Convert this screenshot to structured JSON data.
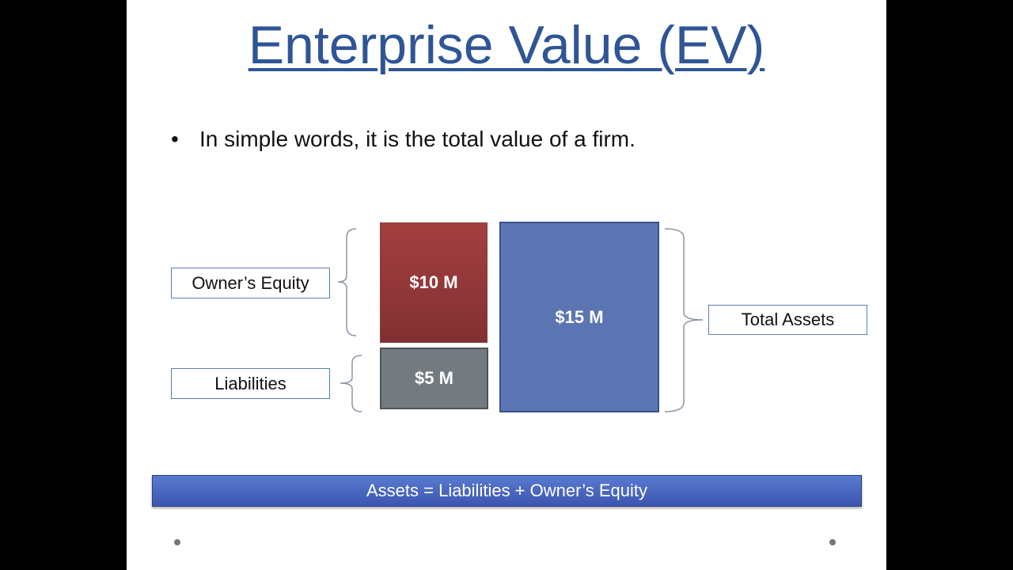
{
  "slide": {
    "title": "Enterprise Value (EV)",
    "bullet": "In simple words, it is the total value of a firm.",
    "diagram": {
      "owners_equity_label": "Owner’s Equity",
      "liabilities_label": "Liabilities",
      "total_assets_label": "Total Assets",
      "equity_value": "$10 M",
      "liabilities_value": "$5 M",
      "assets_value": "$15 M"
    },
    "equation": "Assets = Liabilities  +  Owner’s Equity",
    "colors": {
      "equity": "#a43f3f",
      "liabilities": "#737b80",
      "assets": "#5b75b3",
      "title": "#2f5597"
    }
  }
}
